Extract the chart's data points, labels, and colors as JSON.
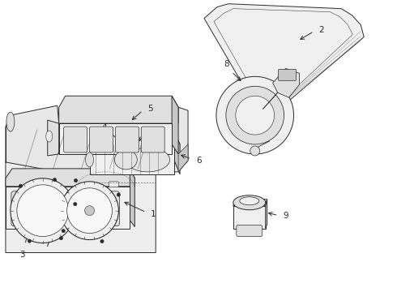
{
  "bg_color": "#ffffff",
  "line_color": "#2a2a2a",
  "fill_light": "#f0f0f0",
  "fill_mid": "#e0e0e0",
  "fill_dark": "#c8c8c8",
  "figsize": [
    4.9,
    3.6
  ],
  "dpi": 100,
  "label_fs": 7.5
}
